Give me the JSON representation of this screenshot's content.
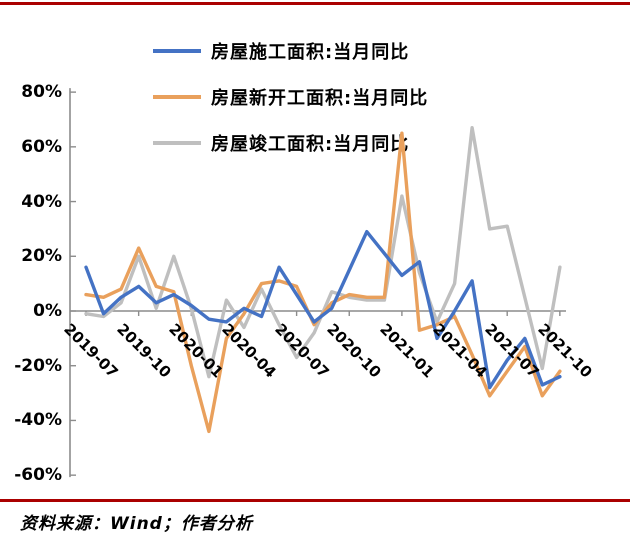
{
  "frame": {
    "top_line_color": "#AA0000",
    "bottom_line_color": "#AA0000"
  },
  "source": {
    "text": "资料来源：Wind；作者分析"
  },
  "chart_data": {
    "type": "line",
    "x": [
      "2019-07",
      "2019-08",
      "2019-09",
      "2019-10",
      "2019-11",
      "2019-12",
      "2020-01",
      "2020-02",
      "2020-03",
      "2020-04",
      "2020-05",
      "2020-06",
      "2020-07",
      "2020-08",
      "2020-09",
      "2020-10",
      "2020-11",
      "2020-12",
      "2021-01",
      "2021-02",
      "2021-03",
      "2021-04",
      "2021-05",
      "2021-06",
      "2021-07",
      "2021-08",
      "2021-09",
      "2021-10"
    ],
    "x_tick_every": 3,
    "x_tick_labels": [
      "2019-07",
      "2019-10",
      "2020-01",
      "2020-04",
      "2020-07",
      "2020-10",
      "2021-01",
      "2021-04",
      "2021-07",
      "2021-10"
    ],
    "ylim": [
      -60,
      80
    ],
    "yticks": [
      80,
      60,
      40,
      20,
      0,
      -20,
      -40,
      -60
    ],
    "ytick_labels": [
      "80%",
      "60%",
      "40%",
      "20%",
      "0%",
      "-20%",
      "-40%",
      "-60%"
    ],
    "grid": false,
    "legend_position": "top",
    "axis_color": "#8C8C8C",
    "series": [
      {
        "name": "房屋竣工面积:当月同比",
        "color": "#BFBFBF",
        "values": [
          -1,
          -2,
          3,
          20,
          1,
          20,
          1,
          -24,
          4,
          -6,
          8,
          -5,
          -17,
          -8,
          7,
          5,
          4,
          4,
          42,
          14,
          -4,
          10,
          67,
          30,
          31,
          5,
          -21,
          16
        ]
      },
      {
        "name": "房屋新开工面积:当月同比",
        "color": "#E9A05C",
        "values": [
          6,
          5,
          8,
          23,
          9,
          7,
          -20,
          -44,
          -10,
          -1,
          10,
          11,
          9,
          -5,
          3,
          6,
          5,
          5,
          65,
          -7,
          -5,
          -2,
          -16,
          -31,
          -22,
          -13,
          -31,
          -22
        ]
      },
      {
        "name": "房屋施工面积:当月同比",
        "color": "#4472C4",
        "values": [
          16,
          -1,
          5,
          9,
          3,
          6,
          2,
          -3,
          -4,
          1,
          -2,
          16,
          6,
          -4,
          1,
          15,
          29,
          21,
          13,
          18,
          -10,
          0,
          11,
          -28,
          -18,
          -10,
          -27,
          -24
        ]
      }
    ],
    "legend_order": [
      "房屋施工面积:当月同比",
      "房屋新开工面积:当月同比",
      "房屋竣工面积:当月同比"
    ]
  }
}
